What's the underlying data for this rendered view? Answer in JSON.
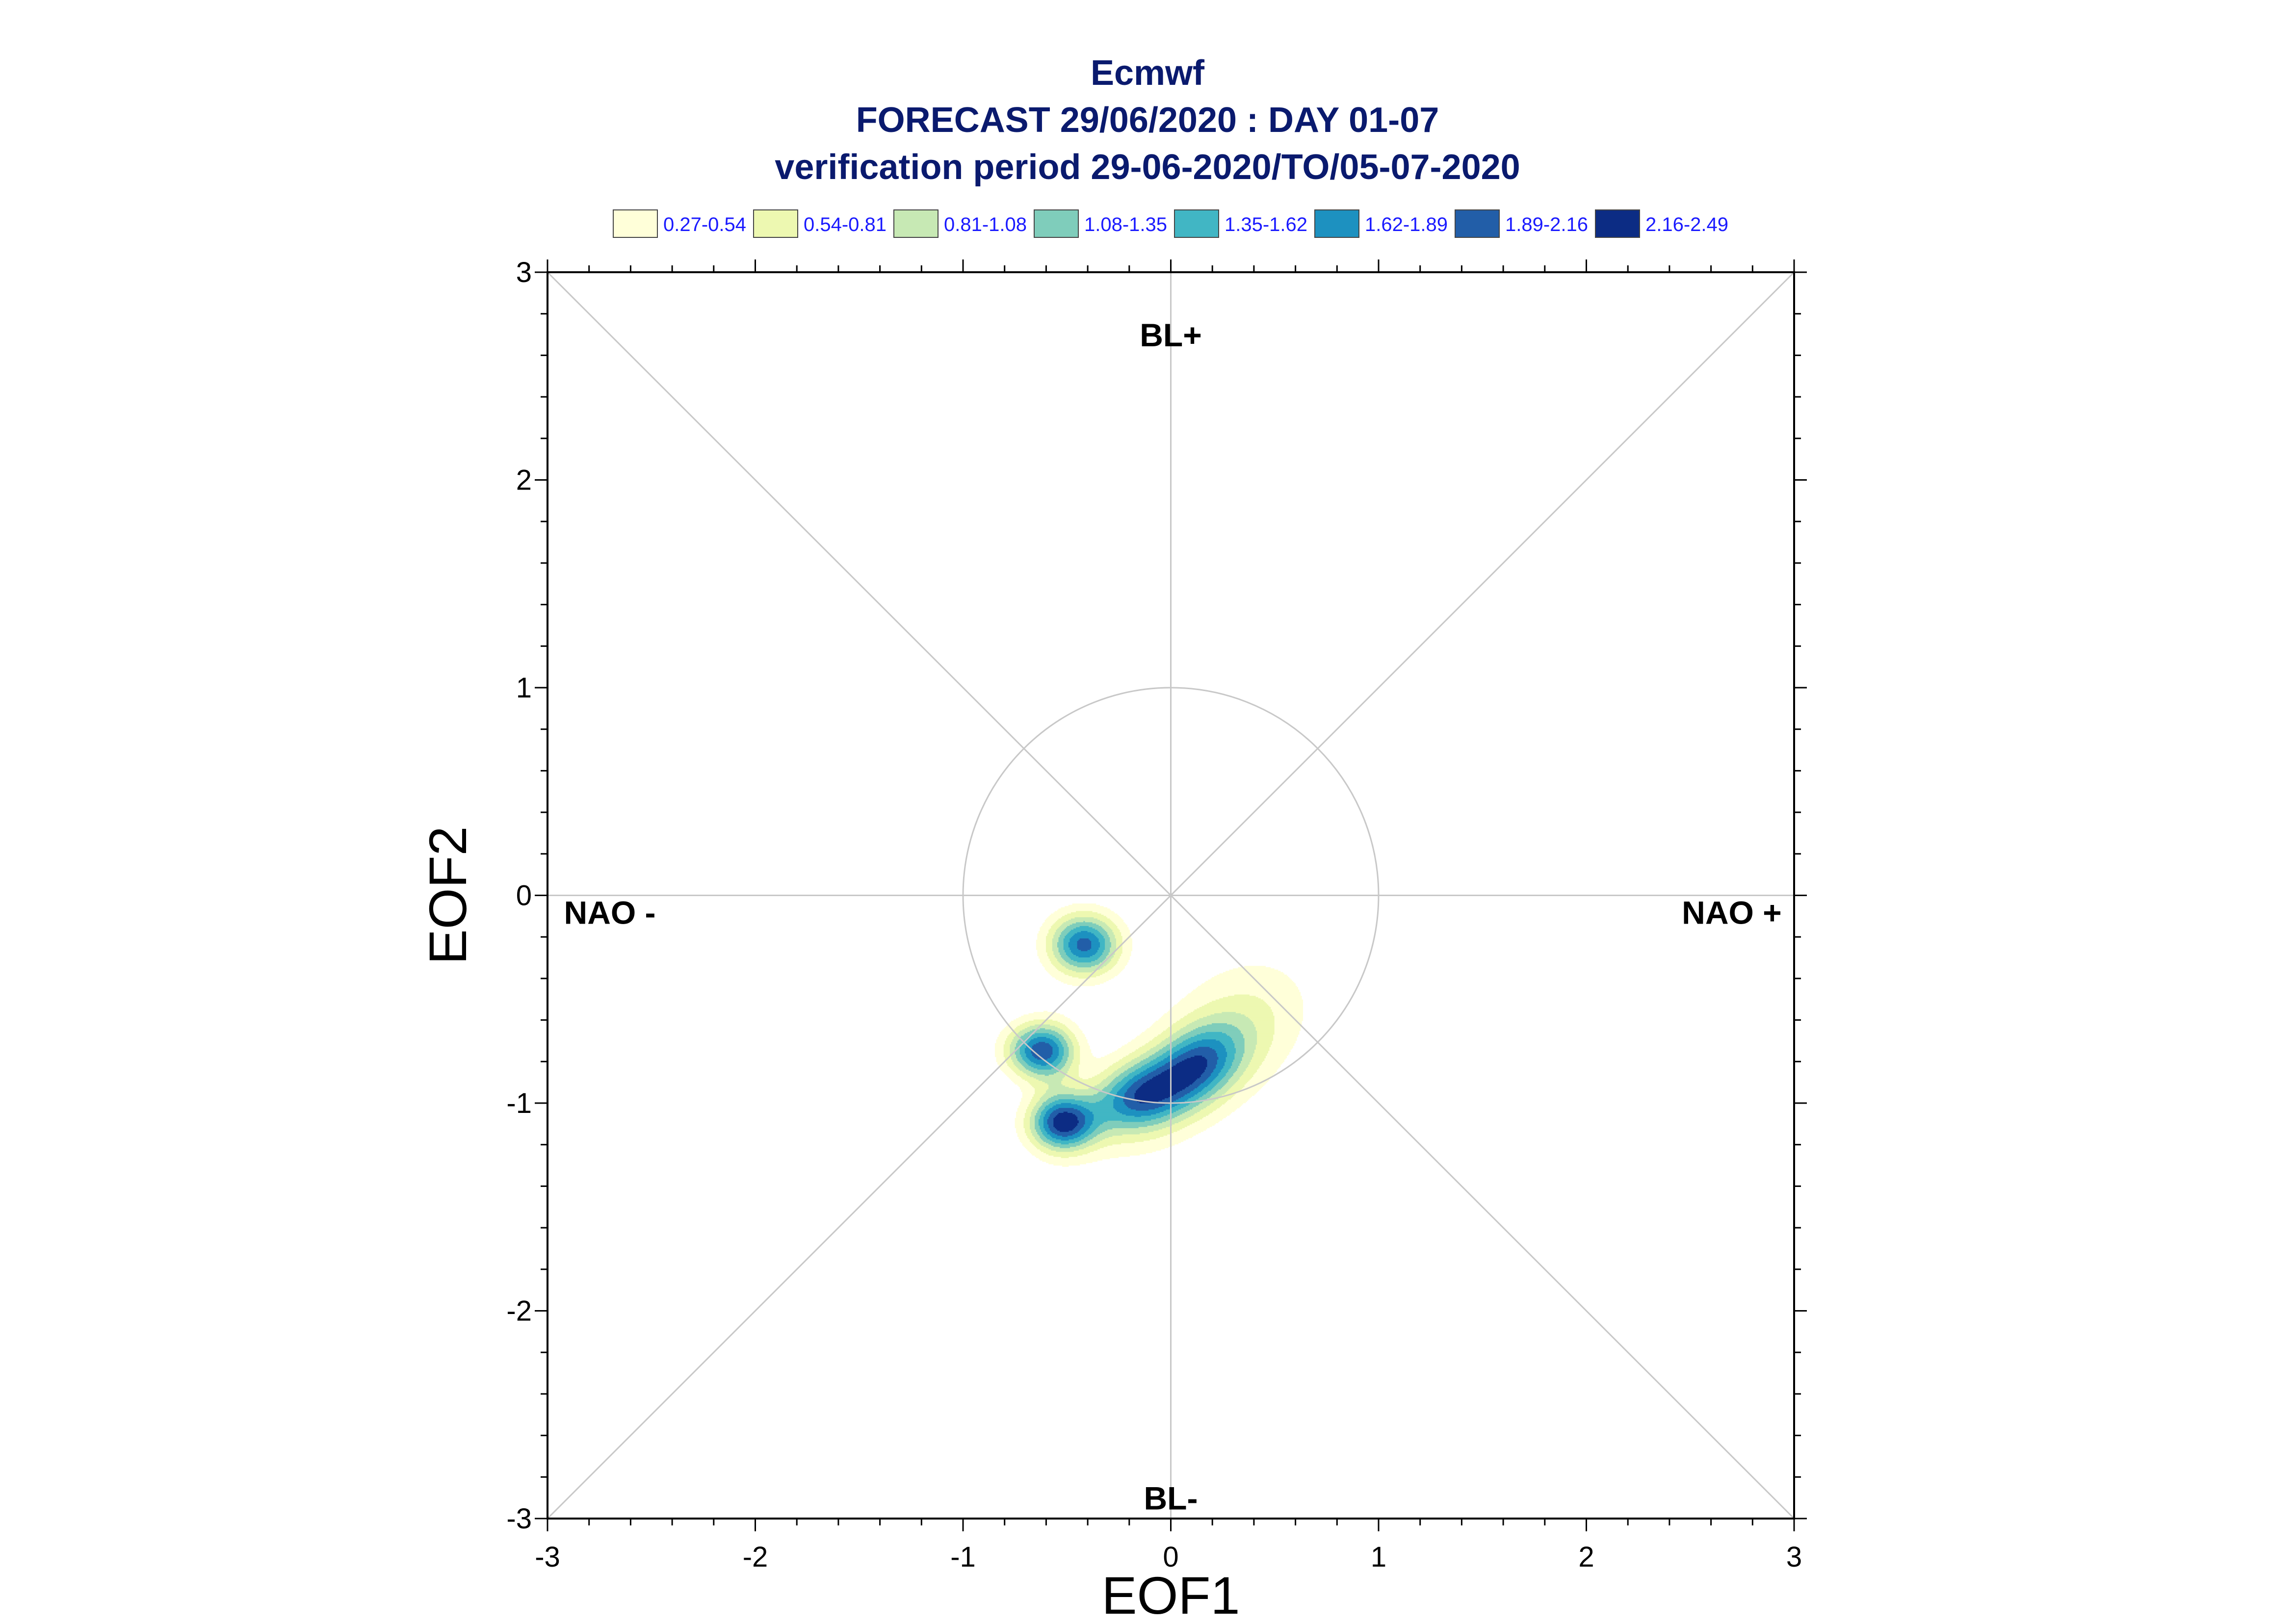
{
  "title_lines": [
    "Ecmwf",
    "FORECAST 29/06/2020 : DAY 01-07",
    "verification period 29-06-2020/TO/05-07-2020"
  ],
  "colors": {
    "title": "#0a1a6e",
    "legend_text": "#1a1aff",
    "axis": "#000000",
    "guide": "#c8c8c8",
    "contour_line": "#8a8a8a"
  },
  "chart_data": {
    "type": "contour",
    "xlabel": "EOF1",
    "ylabel": "EOF2",
    "xlim": [
      -3,
      3
    ],
    "ylim": [
      -3,
      3
    ],
    "xticks": [
      "-3",
      "-2",
      "-1",
      "0",
      "1",
      "2",
      "3"
    ],
    "yticks": [
      "3",
      "2",
      "1",
      "0",
      "-1",
      "-2",
      "-3"
    ],
    "grid": false,
    "legend_placement": "top",
    "regime_labels": [
      {
        "text": "BL+",
        "x": 0,
        "y": 2.7
      },
      {
        "text": "BL-",
        "x": 0,
        "y": -2.9
      },
      {
        "text": "NAO -",
        "x": -2.7,
        "y": -0.08
      },
      {
        "text": "NAO +",
        "x": 2.7,
        "y": -0.08
      }
    ],
    "unit_circle_radius": 1,
    "levels": [
      {
        "label": "0.27-0.54",
        "color": "#ffffd9"
      },
      {
        "label": "0.54-0.81",
        "color": "#edf8b1"
      },
      {
        "label": "0.81-1.08",
        "color": "#c7e9b4"
      },
      {
        "label": "1.08-1.35",
        "color": "#7fcdbb"
      },
      {
        "label": "1.35-1.62",
        "color": "#41b6c4"
      },
      {
        "label": "1.62-1.89",
        "color": "#1d91c0"
      },
      {
        "label": "1.89-2.16",
        "color": "#225ea8"
      },
      {
        "label": "2.16-2.49",
        "color": "#0c2c84"
      }
    ],
    "density_peaks": [
      {
        "x": -0.42,
        "y": -0.24,
        "peak": 1.89
      },
      {
        "x": -0.63,
        "y": -0.75,
        "peak": 1.89
      },
      {
        "x": -0.52,
        "y": -1.1,
        "peak": 1.89
      },
      {
        "x": -0.15,
        "y": -0.96,
        "peak": 2.3
      },
      {
        "x": 0.12,
        "y": -0.82,
        "peak": 2.3
      }
    ]
  }
}
